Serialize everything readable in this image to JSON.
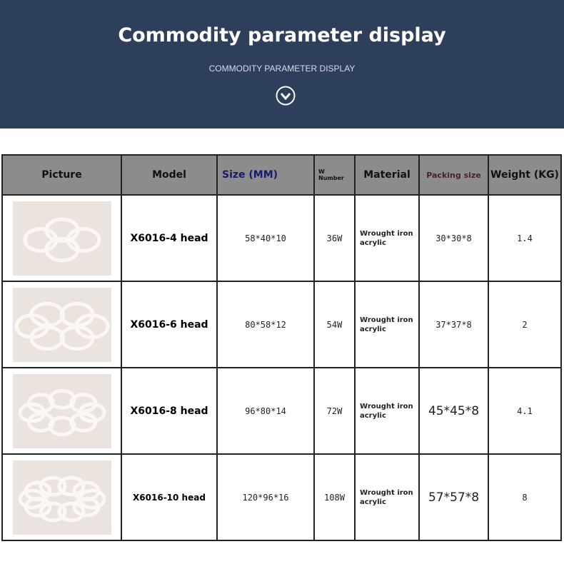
{
  "banner": {
    "title": "Commodity parameter display",
    "subtitle": "COMMODITY PARAMETER DISPLAY",
    "icon": "chevron-down-circle-icon"
  },
  "colors": {
    "banner": "#2e3f5c",
    "header": "#8c8c8c",
    "size_header": "#1a1a6e",
    "packing_header": "#4a1f3a"
  },
  "table": {
    "headers": {
      "picture": "Picture",
      "model": "Model",
      "size": "Size (MM)",
      "w_top": "W",
      "w_bottom": "Number",
      "material": "Material",
      "packing": "Packing size",
      "weight": "Weight (KG)"
    },
    "rows": [
      {
        "model": "X6016-4 head",
        "size": "58*40*10",
        "watt": "36W",
        "material1": "Wrought iron",
        "material2": "acrylic",
        "packing": "30*30*8",
        "weight": "1.4",
        "rings": 4
      },
      {
        "model": "X6016-6 head",
        "size": "80*58*12",
        "watt": "54W",
        "material1": "Wrought iron",
        "material2": "acrylic",
        "packing": "37*37*8",
        "weight": "2",
        "rings": 6
      },
      {
        "model": "X6016-8 head",
        "size": "96*80*14",
        "watt": "72W",
        "material1": "Wrought iron",
        "material2": "acrylic",
        "packing": "45*45*8",
        "weight": "4.1",
        "rings": 8
      },
      {
        "model": "X6016-10 head",
        "size": "120*96*16",
        "watt": "108W",
        "material1": "Wrought iron",
        "material2": "acrylic",
        "packing": "57*57*8",
        "weight": "8",
        "rings": 10
      }
    ]
  }
}
